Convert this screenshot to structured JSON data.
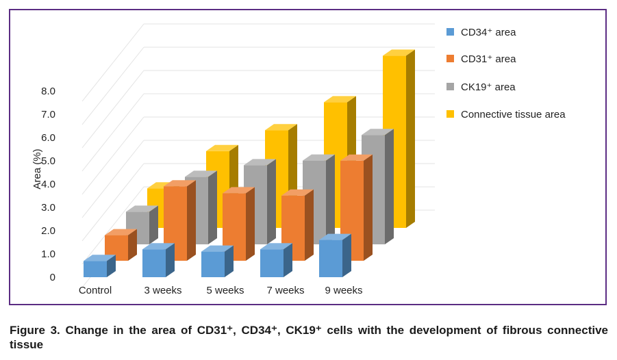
{
  "chart_data": {
    "type": "bar",
    "subtype": "3d-clustered-bar",
    "title": "",
    "xlabel": "",
    "ylabel": "Area (%)",
    "ylim": [
      0,
      8
    ],
    "yticks": [
      "0",
      "1.0",
      "2.0",
      "3.0",
      "4.0",
      "5.0",
      "6.0",
      "7.0",
      "8.0"
    ],
    "categories": [
      "Control",
      "3 weeks",
      "5 weeks",
      "7 weeks",
      "9 weeks"
    ],
    "grid": true,
    "legend_position": "right",
    "series": [
      {
        "name": "CD34⁺ area",
        "color": "#5b9bd5",
        "values": [
          0.7,
          1.2,
          1.1,
          1.2,
          1.6
        ]
      },
      {
        "name": "CD31⁺ area",
        "color": "#ed7d31",
        "values": [
          1.1,
          3.2,
          2.9,
          2.8,
          4.3
        ]
      },
      {
        "name": "CK19⁺ area",
        "color": "#a5a5a5",
        "values": [
          1.4,
          2.9,
          3.4,
          3.6,
          4.7
        ]
      },
      {
        "name": "Connective tissue area",
        "color": "#ffc000",
        "values": [
          1.7,
          3.3,
          4.2,
          5.4,
          7.4
        ]
      }
    ]
  },
  "caption": "Figure 3. Change in the area of CD31⁺, CD34⁺, CK19⁺ cells with the development of fibrous connective tissue"
}
